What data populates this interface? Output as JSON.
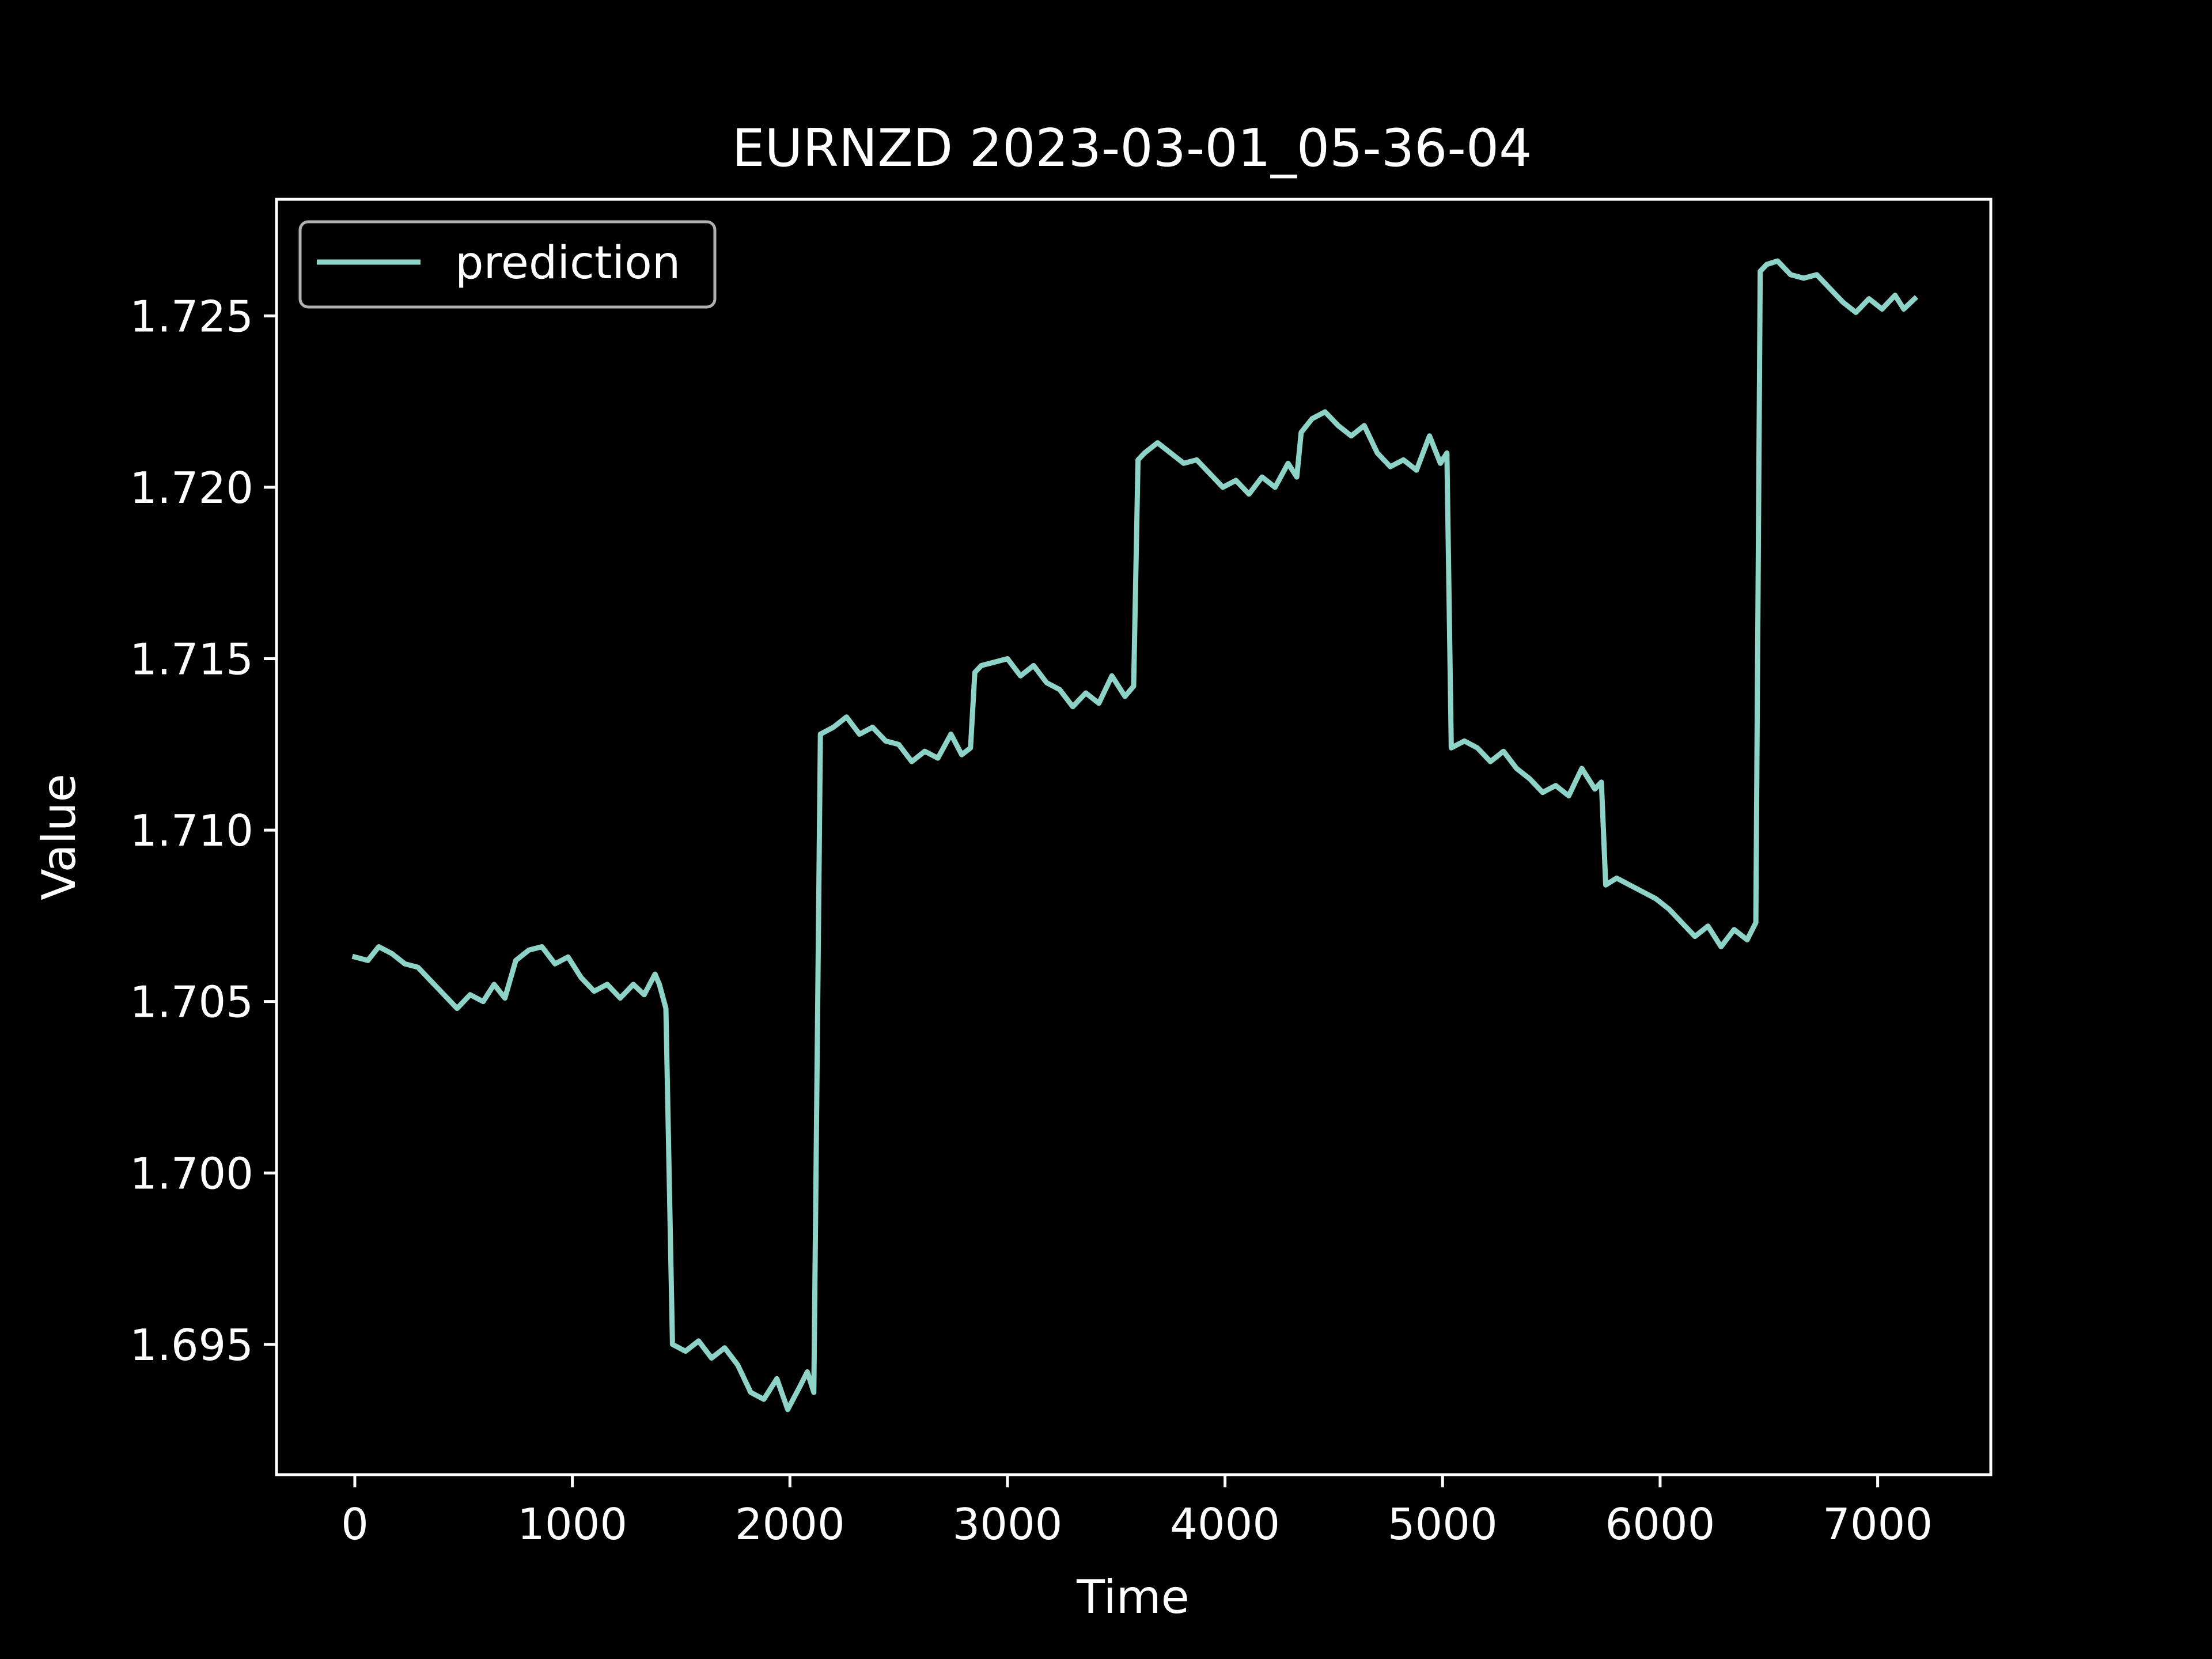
{
  "chart_data": {
    "type": "line",
    "title": "EURNZD 2023-03-01_05-36-04",
    "xlabel": "Time",
    "ylabel": "Value",
    "xlim": [
      -360,
      7520
    ],
    "ylim": [
      1.6912,
      1.7284
    ],
    "x_ticks": [
      0,
      1000,
      2000,
      3000,
      4000,
      5000,
      6000,
      7000
    ],
    "x_tick_labels": [
      "0",
      "1000",
      "2000",
      "3000",
      "4000",
      "5000",
      "6000",
      "7000"
    ],
    "y_ticks": [
      1.695,
      1.7,
      1.705,
      1.71,
      1.715,
      1.72,
      1.725
    ],
    "y_tick_labels": [
      "1.695",
      "1.700",
      "1.705",
      "1.710",
      "1.715",
      "1.720",
      "1.725"
    ],
    "grid": false,
    "legend_position": "upper-left",
    "background": "#000000",
    "foreground": "#ffffff",
    "series": [
      {
        "name": "prediction",
        "color": "#8dd3c7",
        "x": [
          0,
          60,
          110,
          170,
          230,
          290,
          350,
          410,
          470,
          530,
          590,
          640,
          690,
          740,
          800,
          860,
          920,
          980,
          1040,
          1100,
          1160,
          1220,
          1280,
          1330,
          1380,
          1400,
          1430,
          1460,
          1520,
          1580,
          1640,
          1700,
          1760,
          1820,
          1880,
          1940,
          1990,
          2040,
          2080,
          2110,
          2140,
          2200,
          2260,
          2320,
          2380,
          2440,
          2500,
          2560,
          2620,
          2680,
          2740,
          2790,
          2830,
          2850,
          2880,
          2940,
          3000,
          3060,
          3120,
          3180,
          3240,
          3300,
          3360,
          3420,
          3480,
          3540,
          3580,
          3600,
          3630,
          3690,
          3750,
          3810,
          3870,
          3930,
          3990,
          4050,
          4110,
          4170,
          4230,
          4290,
          4330,
          4350,
          4400,
          4460,
          4520,
          4580,
          4640,
          4700,
          4760,
          4820,
          4880,
          4940,
          4990,
          5020,
          5040,
          5100,
          5160,
          5220,
          5280,
          5340,
          5400,
          5460,
          5520,
          5580,
          5640,
          5700,
          5730,
          5750,
          5800,
          5860,
          5920,
          5980,
          6040,
          6100,
          6160,
          6220,
          6280,
          6340,
          6400,
          6440,
          6460,
          6490,
          6540,
          6600,
          6660,
          6720,
          6780,
          6840,
          6900,
          6960,
          7020,
          7080,
          7120,
          7170
        ],
        "y": [
          1.7063,
          1.7062,
          1.7066,
          1.7064,
          1.7061,
          1.706,
          1.7056,
          1.7052,
          1.7048,
          1.7052,
          1.705,
          1.7055,
          1.7051,
          1.7062,
          1.7065,
          1.7066,
          1.7061,
          1.7063,
          1.7057,
          1.7053,
          1.7055,
          1.7051,
          1.7055,
          1.7052,
          1.7058,
          1.7055,
          1.7048,
          1.695,
          1.6948,
          1.6951,
          1.6946,
          1.6949,
          1.6944,
          1.6936,
          1.6934,
          1.694,
          1.6931,
          1.6937,
          1.6942,
          1.6936,
          1.7128,
          1.713,
          1.7133,
          1.7128,
          1.713,
          1.7126,
          1.7125,
          1.712,
          1.7123,
          1.7121,
          1.7128,
          1.7122,
          1.7124,
          1.7146,
          1.7148,
          1.7149,
          1.715,
          1.7145,
          1.7148,
          1.7143,
          1.7141,
          1.7136,
          1.714,
          1.7137,
          1.7145,
          1.7139,
          1.7142,
          1.7208,
          1.721,
          1.7213,
          1.721,
          1.7207,
          1.7208,
          1.7204,
          1.72,
          1.7202,
          1.7198,
          1.7203,
          1.72,
          1.7207,
          1.7203,
          1.7216,
          1.722,
          1.7222,
          1.7218,
          1.7215,
          1.7218,
          1.721,
          1.7206,
          1.7208,
          1.7205,
          1.7215,
          1.7207,
          1.721,
          1.7124,
          1.7126,
          1.7124,
          1.712,
          1.7123,
          1.7118,
          1.7115,
          1.7111,
          1.7113,
          1.711,
          1.7118,
          1.7112,
          1.7114,
          1.7084,
          1.7086,
          1.7084,
          1.7082,
          1.708,
          1.7077,
          1.7073,
          1.7069,
          1.7072,
          1.7066,
          1.7071,
          1.7068,
          1.7073,
          1.7263,
          1.7265,
          1.7266,
          1.7262,
          1.7261,
          1.7262,
          1.7258,
          1.7254,
          1.7251,
          1.7255,
          1.7252,
          1.7256,
          1.7252,
          1.7255
        ]
      }
    ]
  }
}
